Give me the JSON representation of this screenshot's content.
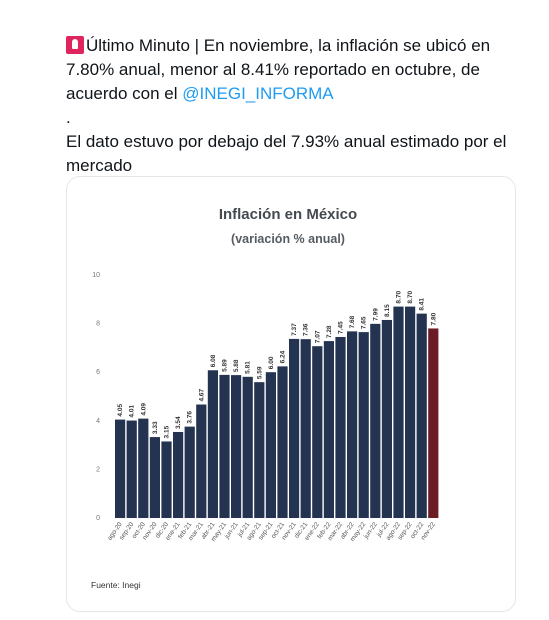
{
  "tweet": {
    "prefix": "Último Minuto | En noviembre, la inflación se ubicó en 7.80% anual, menor al 8.41% reportado en octubre, de acuerdo con el ",
    "mention": "@INEGI_INFORMA",
    "dot": ".",
    "second_line": "El dato estuvo por debajo del 7.93% anual estimado por el mercado",
    "icon": "rotating-light-icon"
  },
  "chart_data": {
    "type": "bar",
    "title": "Inflación en México",
    "subtitle": "(variación % anual)",
    "categories": [
      "ago-20",
      "sep-20",
      "oct-20",
      "nov-20",
      "dic-20",
      "ene-21",
      "feb-21",
      "mar-21",
      "abr-21",
      "may-21",
      "jun-21",
      "jul-21",
      "ago-21",
      "sep-21",
      "oct-21",
      "nov-21",
      "dic-21",
      "ene-22",
      "feb-22",
      "mar-22",
      "abr-22",
      "may-22",
      "jun-22",
      "jul-22",
      "ago-22",
      "sep-22",
      "oct-22",
      "nov-22"
    ],
    "values": [
      4.05,
      4.01,
      4.09,
      3.33,
      3.15,
      3.54,
      3.76,
      4.67,
      6.08,
      5.89,
      5.88,
      5.81,
      5.59,
      6.0,
      6.24,
      7.37,
      7.36,
      7.07,
      7.28,
      7.45,
      7.68,
      7.65,
      7.99,
      8.15,
      8.7,
      8.7,
      8.41,
      7.8
    ],
    "value_labels": [
      "4.05",
      "4.01",
      "4.09",
      "3.33",
      "3.15",
      "3.54",
      "3.76",
      "4.67",
      "6.08",
      "5.89",
      "5.88",
      "5.81",
      "5.59",
      "6.00",
      "6.24",
      "7.37",
      "7.36",
      "7.07",
      "7.28",
      "7.45",
      "7.68",
      "7.65",
      "7.99",
      "8.15",
      "8.70",
      "8.70",
      "8.41",
      "7.80"
    ],
    "ylim": [
      0,
      10
    ],
    "yticks": [
      0,
      2,
      4,
      6,
      8,
      10
    ],
    "grid": false,
    "colors": {
      "bar": "#233350",
      "highlight": "#6b1c24"
    },
    "highlight_index": 27,
    "source": "Fuente: Inegi"
  }
}
